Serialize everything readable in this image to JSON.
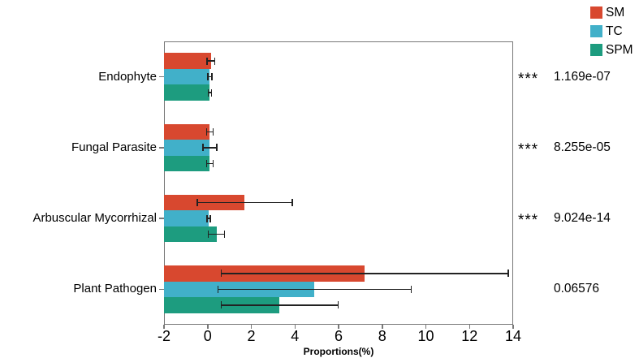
{
  "chart_data": {
    "type": "bar",
    "orientation": "horizontal",
    "title": "",
    "xlabel": "Proportions(%)",
    "xlim": [
      -2,
      14
    ],
    "xticks": [
      -2,
      0,
      2,
      4,
      6,
      8,
      10,
      12,
      14
    ],
    "grid": false,
    "bars_start_at_axis_min": true,
    "legend_position": "top-right-outside",
    "categories": [
      "Endophyte",
      "Fungal Parasite",
      "Arbuscular Mycorrhizal",
      "Plant Pathogen"
    ],
    "series": [
      {
        "name": "SM",
        "color": "#d8482f",
        "values": [
          0.15,
          0.1,
          1.7,
          7.2
        ],
        "errors": [
          0.2,
          0.17,
          2.2,
          6.6
        ]
      },
      {
        "name": "TC",
        "color": "#41b0c9",
        "values": [
          0.1,
          0.1,
          0.05,
          4.9
        ],
        "errors": [
          0.12,
          0.35,
          0.1,
          4.45
        ]
      },
      {
        "name": "SPM",
        "color": "#1d9c7f",
        "values": [
          0.1,
          0.1,
          0.4,
          3.3
        ],
        "errors": [
          0.1,
          0.17,
          0.4,
          2.7
        ]
      }
    ],
    "annotations": [
      {
        "stars": "***",
        "p_value": "1.169e-07"
      },
      {
        "stars": "***",
        "p_value": "8.255e-05"
      },
      {
        "stars": "***",
        "p_value": "9.024e-14"
      },
      {
        "stars": "",
        "p_value": "0.06576"
      }
    ],
    "colors": {
      "spine": "#787878",
      "error_bar": "#222222",
      "text": "#000000",
      "background": "#ffffff"
    }
  }
}
